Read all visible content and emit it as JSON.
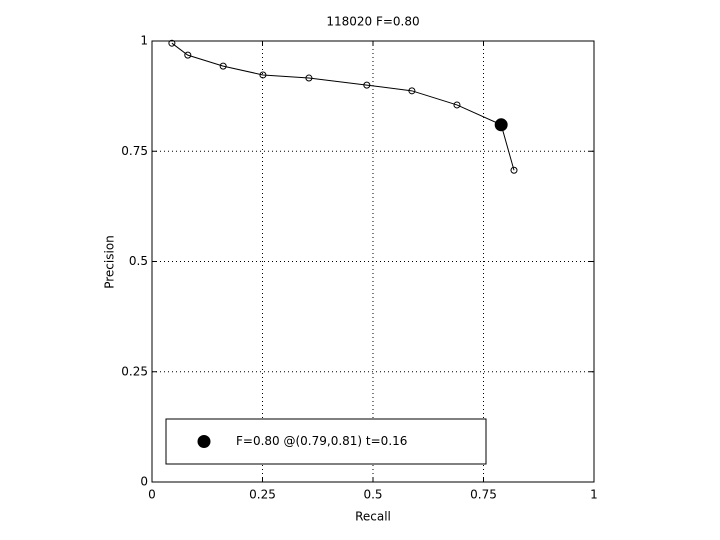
{
  "chart_data": {
    "type": "line",
    "title": "118020 F=0.80",
    "xlabel": "Recall",
    "ylabel": "Precision",
    "xlim": [
      0,
      1
    ],
    "ylim": [
      0,
      1
    ],
    "xticks": [
      0,
      0.25,
      0.5,
      0.75,
      1
    ],
    "yticks": [
      0,
      0.25,
      0.5,
      0.75,
      1
    ],
    "grid": true,
    "series": [
      {
        "color": "#000000",
        "marker": "open-circle",
        "x": [
          0.045,
          0.081,
          0.161,
          0.251,
          0.355,
          0.486,
          0.588,
          0.69,
          0.79,
          0.819
        ],
        "values": [
          0.995,
          0.968,
          0.943,
          0.923,
          0.916,
          0.9,
          0.887,
          0.855,
          0.81,
          0.707
        ]
      },
      {
        "name": "F=0.80 @(0.79,0.81) t=0.16",
        "color": "#000000",
        "marker": "filled-circle",
        "x": [
          0.79
        ],
        "values": [
          0.81
        ]
      }
    ],
    "legend": "lower-left"
  }
}
